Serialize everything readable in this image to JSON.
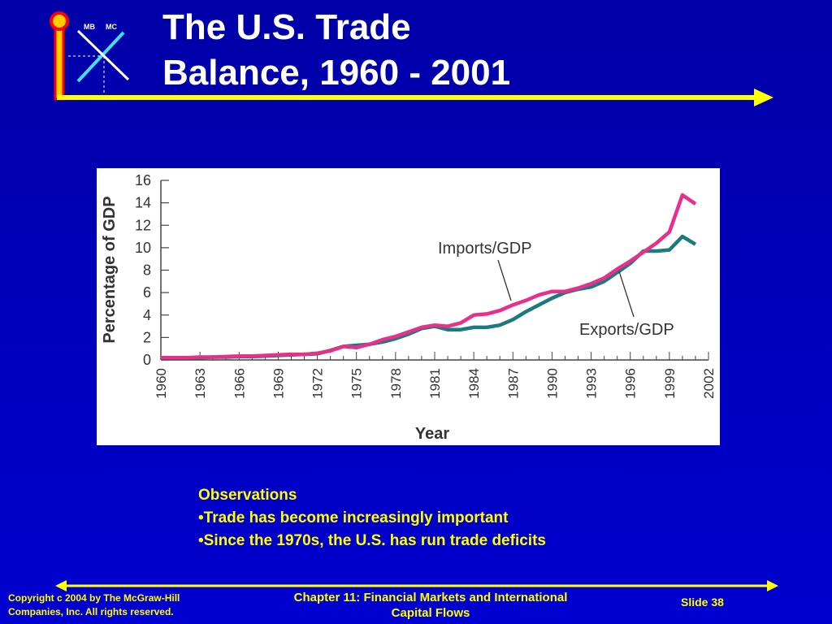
{
  "title": {
    "line1": "The U.S. Trade",
    "line2": "Balance, 1960 - 2001"
  },
  "logo": {
    "mb": "MB",
    "mc": "MC"
  },
  "colors": {
    "background": "#0000b8",
    "accent": "#ffff00",
    "imports": "#e8308a",
    "exports": "#1a7a80",
    "logo_ring": "#ff0000",
    "logo_fill": "#ffcc00"
  },
  "chart_data": {
    "type": "line",
    "xlabel": "Year",
    "ylabel": "Percentage of GDP",
    "xlim": [
      1960,
      2002
    ],
    "ylim": [
      0,
      16
    ],
    "x_ticks": [
      "1960",
      "1963",
      "1966",
      "1969",
      "1972",
      "1975",
      "1978",
      "1981",
      "1984",
      "1987",
      "1990",
      "1993",
      "1996",
      "1999",
      "2002"
    ],
    "y_ticks": [
      "0",
      "2",
      "4",
      "6",
      "8",
      "10",
      "12",
      "14",
      "16"
    ],
    "x": [
      1960,
      1961,
      1962,
      1963,
      1964,
      1965,
      1966,
      1967,
      1968,
      1969,
      1970,
      1971,
      1972,
      1973,
      1974,
      1975,
      1976,
      1977,
      1978,
      1979,
      1980,
      1981,
      1982,
      1983,
      1984,
      1985,
      1986,
      1987,
      1988,
      1989,
      1990,
      1991,
      1992,
      1993,
      1994,
      1995,
      1996,
      1997,
      1998,
      1999,
      2000,
      2001
    ],
    "series": [
      {
        "name": "Imports/GDP",
        "values": [
          0.2,
          0.2,
          0.2,
          0.25,
          0.25,
          0.3,
          0.35,
          0.35,
          0.4,
          0.45,
          0.5,
          0.5,
          0.6,
          0.8,
          1.2,
          1.1,
          1.4,
          1.8,
          2.1,
          2.5,
          2.9,
          3.1,
          3.0,
          3.3,
          4.0,
          4.1,
          4.4,
          4.9,
          5.3,
          5.8,
          6.1,
          6.1,
          6.4,
          6.8,
          7.3,
          8.1,
          8.8,
          9.6,
          10.4,
          11.4,
          14.7,
          13.9
        ]
      },
      {
        "name": "Exports/GDP",
        "values": [
          0.2,
          0.2,
          0.2,
          0.2,
          0.25,
          0.25,
          0.3,
          0.3,
          0.35,
          0.4,
          0.45,
          0.5,
          0.55,
          0.85,
          1.2,
          1.3,
          1.4,
          1.6,
          1.9,
          2.3,
          2.8,
          3.0,
          2.7,
          2.7,
          2.9,
          2.9,
          3.1,
          3.6,
          4.3,
          4.9,
          5.5,
          6.0,
          6.3,
          6.5,
          7.0,
          7.8,
          8.6,
          9.7,
          9.7,
          9.8,
          11.0,
          10.3
        ]
      }
    ],
    "annotations": [
      {
        "text": "Imports/GDP",
        "series": 0
      },
      {
        "text": "Exports/GDP",
        "series": 1
      }
    ],
    "grid": false
  },
  "observations": {
    "heading": "Observations",
    "items": [
      "•Trade has become increasingly important",
      "•Since the 1970s, the U.S. has run trade deficits"
    ]
  },
  "footer": {
    "copyright_line1": "Copyright c 2004 by The McGraw-Hill",
    "copyright_line2": "Companies, Inc.  All rights reserved.",
    "chapter_line1": "Chapter 11: Financial Markets and International",
    "chapter_line2": "Capital Flows",
    "slide": "Slide 38"
  }
}
